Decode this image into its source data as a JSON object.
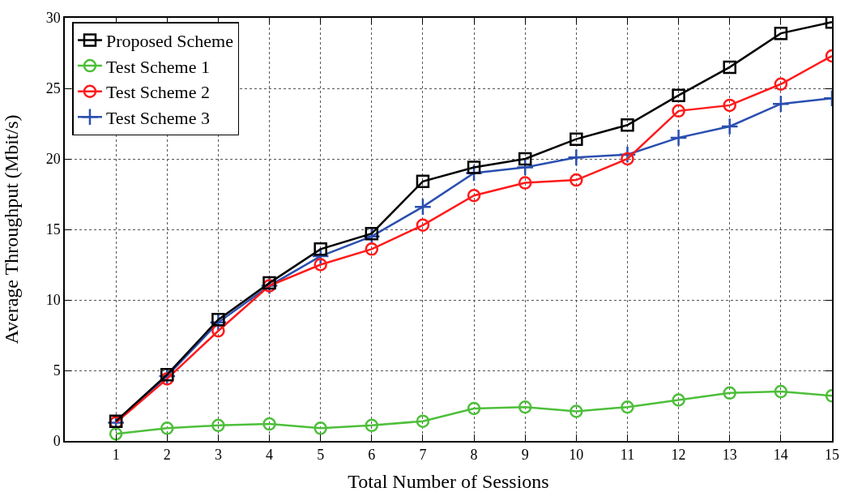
{
  "chart_data": {
    "type": "line",
    "xlabel": "Total Number of Sessions",
    "ylabel": "Average Throughput (Mbit/s)",
    "x": [
      1,
      2,
      3,
      4,
      5,
      6,
      7,
      8,
      9,
      10,
      11,
      12,
      13,
      14,
      15
    ],
    "xlim": [
      0,
      15
    ],
    "xticks": [
      1,
      2,
      3,
      4,
      5,
      6,
      7,
      8,
      9,
      10,
      11,
      12,
      13,
      14,
      15
    ],
    "ylim": [
      0,
      30
    ],
    "yticks": [
      0,
      5,
      10,
      15,
      20,
      25,
      30
    ],
    "grid": true,
    "legend": "top left",
    "line_style": "solid",
    "series": [
      {
        "name": "Proposed Scheme",
        "color": "#000000",
        "marker": "square",
        "values": [
          1.4,
          4.7,
          8.6,
          11.2,
          13.6,
          14.7,
          18.4,
          19.4,
          20.0,
          21.4,
          22.4,
          24.5,
          26.5,
          28.9,
          29.7
        ]
      },
      {
        "name": "Test Scheme 1",
        "color": "#4dbf3a",
        "marker": "circle",
        "values": [
          0.5,
          0.9,
          1.1,
          1.2,
          0.9,
          1.1,
          1.4,
          2.3,
          2.4,
          2.1,
          2.4,
          2.9,
          3.4,
          3.5,
          3.2
        ]
      },
      {
        "name": "Test Scheme 2",
        "color": "#ff1a1a",
        "marker": "circle",
        "values": [
          1.3,
          4.4,
          7.8,
          11.0,
          12.5,
          13.6,
          15.3,
          17.4,
          18.3,
          18.5,
          20.0,
          23.4,
          23.8,
          25.3,
          27.3
        ]
      },
      {
        "name": "Test Scheme 3",
        "color": "#2a4fb0",
        "marker": "cross",
        "values": [
          1.3,
          4.6,
          8.4,
          11.0,
          13.1,
          14.5,
          16.6,
          19.0,
          19.4,
          20.1,
          20.3,
          21.5,
          22.3,
          23.9,
          24.3
        ]
      }
    ]
  }
}
